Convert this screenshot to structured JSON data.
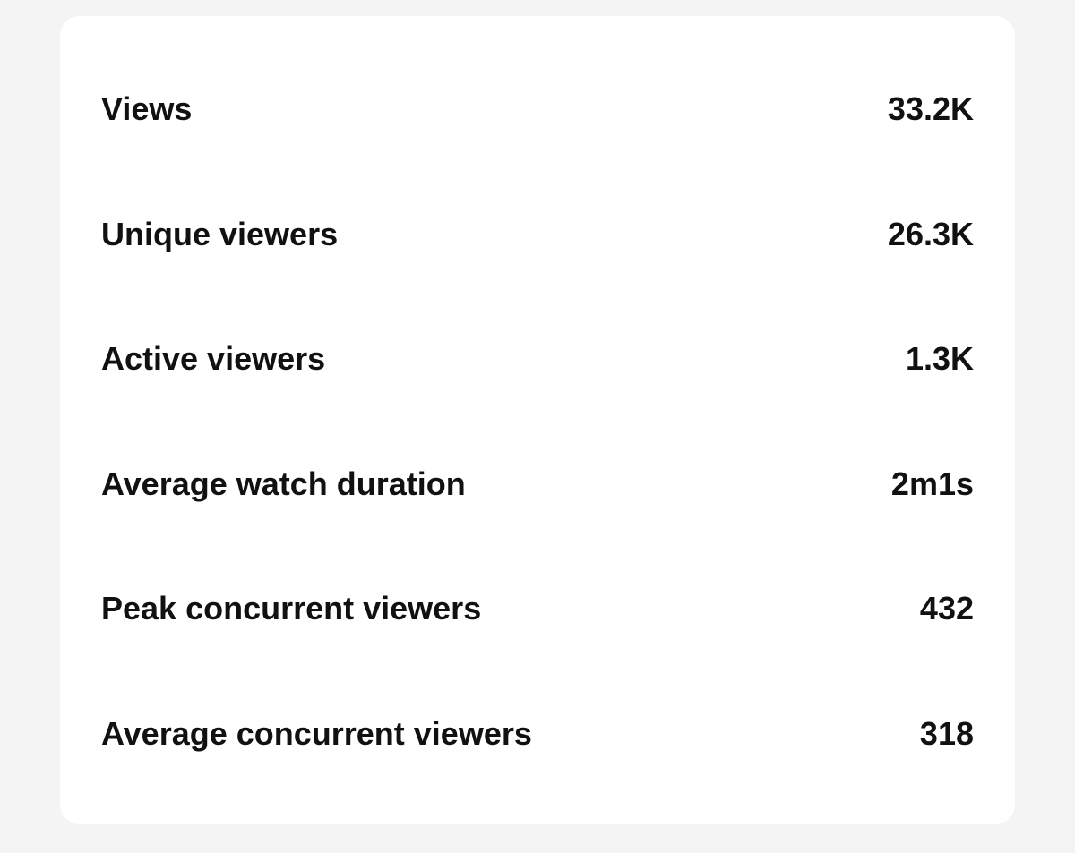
{
  "stats": [
    {
      "label": "Views",
      "value": "33.2K"
    },
    {
      "label": "Unique viewers",
      "value": "26.3K"
    },
    {
      "label": "Active viewers",
      "value": "1.3K"
    },
    {
      "label": "Average watch duration",
      "value": "2m1s"
    },
    {
      "label": "Peak concurrent viewers",
      "value": "432"
    },
    {
      "label": "Average concurrent viewers",
      "value": "318"
    }
  ]
}
